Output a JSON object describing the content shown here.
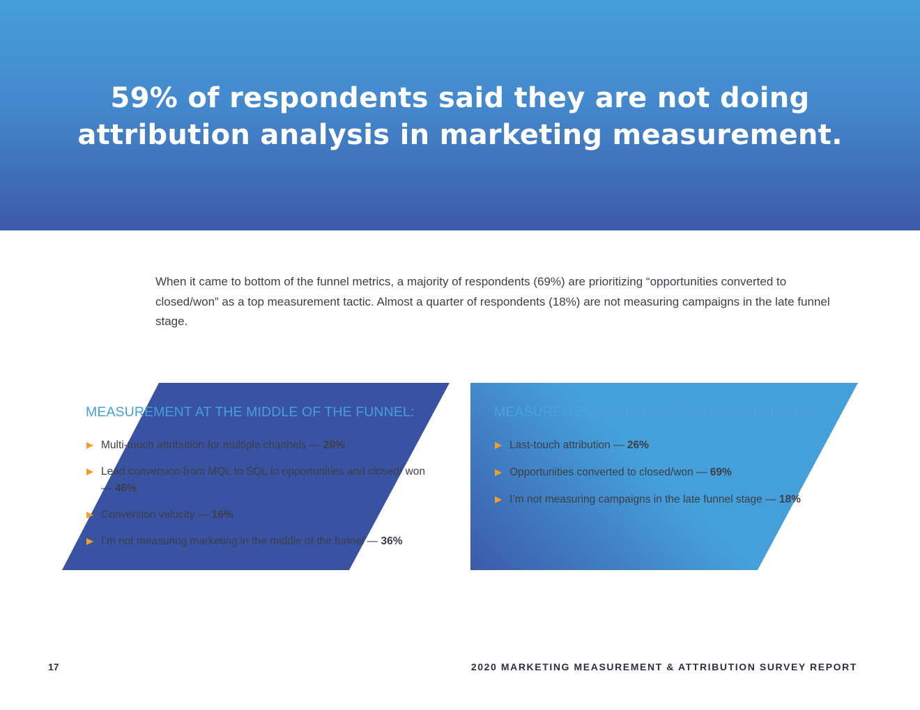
{
  "hero": {
    "title_line1": "59% of respondents said they are not doing",
    "title_line2": "attribution analysis in marketing measurement."
  },
  "intro": {
    "text": "When it came to bottom of the funnel metrics, a majority of respondents (69%) are prioritizing “opportunities converted to closed/won” as a top measurement tactic. Almost a quarter of respondents (18%) are not measuring campaigns in the late funnel stage."
  },
  "middle_funnel": {
    "heading": "MEASUREMENT AT THE MIDDLE OF THE FUNNEL:",
    "items": [
      {
        "label": "Multi-touch attribution for multiple channels — ",
        "value": "28%"
      },
      {
        "label": "Lead conversion from MQL to SQL to opportunities and closed/ won — ",
        "value": "46%"
      },
      {
        "label": "Conversion velocity — ",
        "value": "16%"
      },
      {
        "label": "I’m not measuring marketing in the middle of the funnel — ",
        "value": "36%"
      }
    ]
  },
  "bottom_funnel": {
    "heading": "MEASUREMENT AT THE BOTTOM OF THE FUNNEL:",
    "items": [
      {
        "label": "Last-touch attribution — ",
        "value": "26%"
      },
      {
        "label": "Opportunities converted to closed/won — ",
        "value": "69%"
      },
      {
        "label": "I’m not measuring campaigns in the late funnel stage — ",
        "value": "18%"
      }
    ]
  },
  "footer": {
    "page_number": "17",
    "report_title": "2020 MARKETING MEASUREMENT & ATTRIBUTION SURVEY REPORT"
  },
  "colors": {
    "hero_top": "#459ed9",
    "hero_bottom": "#3c5aa9",
    "left_panel": "#3a52a2",
    "right_panel": "#459fd9",
    "heading_accent": "#459fd9",
    "bullet_arrow": "#f5a02b",
    "body_text": "#3a3f4a"
  },
  "icons": {
    "bullet": "triangle-right-icon"
  }
}
